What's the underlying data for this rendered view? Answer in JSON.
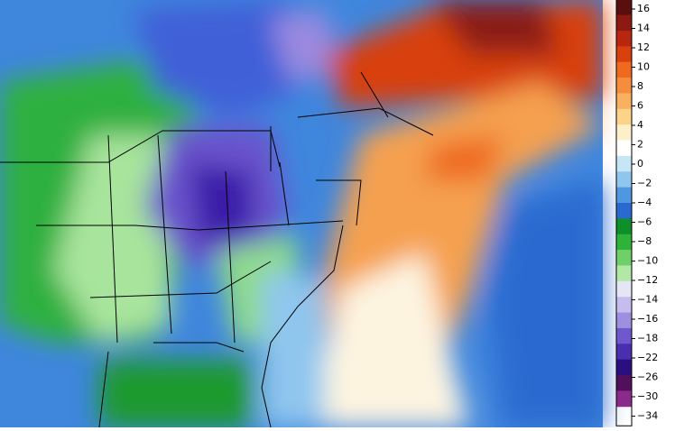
{
  "colorbar": {
    "ticks": [
      16,
      14,
      12,
      10,
      8,
      6,
      4,
      2,
      0,
      {
        "value": -2,
        "label": "−2"
      },
      {
        "value": -4,
        "label": "−4"
      },
      {
        "value": -6,
        "label": "−6"
      },
      {
        "value": -8,
        "label": "−8"
      },
      {
        "value": -10,
        "label": "−10"
      },
      {
        "value": -12,
        "label": "−12"
      },
      {
        "value": -14,
        "label": "−14"
      },
      {
        "value": -16,
        "label": "−16"
      },
      {
        "value": -18,
        "label": "−18"
      },
      {
        "value": -22,
        "label": "−22"
      },
      {
        "value": -26,
        "label": "−26"
      },
      {
        "value": -30,
        "label": "−30"
      },
      {
        "value": -34,
        "label": "−34"
      }
    ],
    "colors": [
      "#5a0f0f",
      "#8c1a12",
      "#b8260f",
      "#d9400d",
      "#ee6a1f",
      "#f58e3c",
      "#f9b060",
      "#fbd48a",
      "#fdf0c8",
      "#ffffff",
      "#c6e6f7",
      "#8fc6ee",
      "#4f97e0",
      "#2a6ad0",
      "#0f8f2a",
      "#2fb23a",
      "#6fd06a",
      "#b2e8a6",
      "#e4e6f6",
      "#c6bdee",
      "#9f8fe0",
      "#6f58cc",
      "#4a2eb0",
      "#2a0f80",
      "#50105a",
      "#8a2a8a"
    ]
  }
}
